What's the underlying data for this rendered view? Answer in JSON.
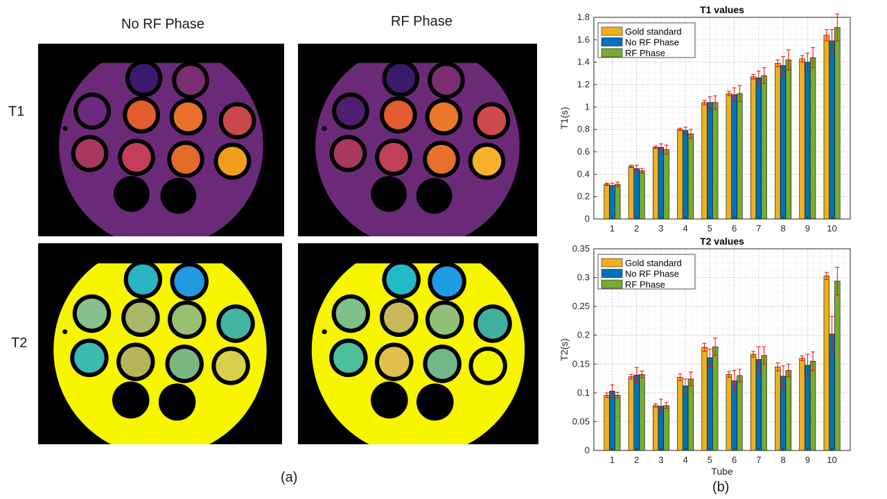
{
  "figure": {
    "col_labels": [
      "No RF Phase",
      "RF Phase"
    ],
    "row_labels": [
      "T1",
      "T2"
    ],
    "label_a": "(a)",
    "label_b": "(b)"
  },
  "colors": {
    "gold": "#EDB120",
    "blue": "#0072BD",
    "green": "#77AC30",
    "error": "#FF0000",
    "t1_background": "#6B2A78",
    "t2_background": "#F7F500"
  },
  "chart_data": [
    {
      "type": "bar",
      "title": "T1 values",
      "xlabel": "",
      "ylabel": "T1(s)",
      "categories": [
        "1",
        "2",
        "3",
        "4",
        "5",
        "6",
        "7",
        "8",
        "9",
        "10"
      ],
      "ylim": [
        0,
        1.8
      ],
      "yticks": [
        0,
        0.2,
        0.4,
        0.6,
        0.8,
        1,
        1.2,
        1.4,
        1.6,
        1.8
      ],
      "ytick_labels": [
        "0",
        "0.2",
        "0.4",
        "0.6",
        "0.8",
        "1",
        "1.2",
        "1.4",
        "1.6",
        "1.8"
      ],
      "grid": true,
      "legend_position": "top-left",
      "series": [
        {
          "name": "Gold standard",
          "color_key": "gold",
          "values": [
            0.31,
            0.47,
            0.64,
            0.8,
            1.04,
            1.12,
            1.27,
            1.39,
            1.43,
            1.64
          ],
          "errors": [
            0.01,
            0.01,
            0.01,
            0.01,
            0.02,
            0.02,
            0.02,
            0.03,
            0.03,
            0.05
          ]
        },
        {
          "name": "No RF Phase",
          "color_key": "blue",
          "values": [
            0.3,
            0.45,
            0.64,
            0.79,
            1.04,
            1.11,
            1.26,
            1.37,
            1.4,
            1.59
          ],
          "errors": [
            0.02,
            0.03,
            0.03,
            0.03,
            0.05,
            0.06,
            0.06,
            0.08,
            0.08,
            0.1
          ]
        },
        {
          "name": "RF Phase",
          "color_key": "green",
          "values": [
            0.31,
            0.43,
            0.62,
            0.76,
            1.04,
            1.12,
            1.28,
            1.42,
            1.44,
            1.71
          ],
          "errors": [
            0.02,
            0.02,
            0.04,
            0.04,
            0.06,
            0.07,
            0.07,
            0.09,
            0.09,
            0.12
          ]
        }
      ]
    },
    {
      "type": "bar",
      "title": "T2 values",
      "xlabel": "Tube",
      "ylabel": "T2(s)",
      "categories": [
        "1",
        "2",
        "3",
        "4",
        "5",
        "6",
        "7",
        "8",
        "9",
        "10"
      ],
      "ylim": [
        0,
        0.35
      ],
      "yticks": [
        0,
        0.05,
        0.1,
        0.15,
        0.2,
        0.25,
        0.3,
        0.35
      ],
      "ytick_labels": [
        "0",
        "0.05",
        "0.1",
        "0.15",
        "0.2",
        "0.25",
        "0.3",
        "0.35"
      ],
      "grid": true,
      "legend_position": "top-left",
      "series": [
        {
          "name": "Gold standard",
          "color_key": "gold",
          "values": [
            0.096,
            0.128,
            0.078,
            0.127,
            0.179,
            0.132,
            0.167,
            0.145,
            0.16,
            0.303
          ],
          "errors": [
            0.004,
            0.004,
            0.003,
            0.006,
            0.007,
            0.005,
            0.005,
            0.007,
            0.004,
            0.006
          ]
        },
        {
          "name": "No RF Phase",
          "color_key": "blue",
          "values": [
            0.103,
            0.131,
            0.077,
            0.112,
            0.161,
            0.121,
            0.158,
            0.129,
            0.148,
            0.202
          ],
          "errors": [
            0.011,
            0.013,
            0.012,
            0.012,
            0.015,
            0.018,
            0.022,
            0.018,
            0.019,
            0.031
          ]
        },
        {
          "name": "RF Phase",
          "color_key": "green",
          "values": [
            0.096,
            0.132,
            0.078,
            0.124,
            0.18,
            0.13,
            0.165,
            0.139,
            0.155,
            0.294
          ],
          "errors": [
            0.005,
            0.006,
            0.005,
            0.012,
            0.015,
            0.011,
            0.015,
            0.011,
            0.016,
            0.024
          ]
        }
      ]
    }
  ],
  "phantom_maps": {
    "T1": {
      "no_rf_phase": {
        "tubes": [
          "#381A6E",
          "#7A2E72",
          "#6B2A7E",
          "#E25C30",
          "#E8702A",
          "#C9484C",
          "#A8385E",
          "#C43E5A",
          "#E46A2A",
          "#F49E1E"
        ],
        "empty_tubes": 2
      },
      "rf_phase": {
        "tubes": [
          "#3A1A6B",
          "#7C2E72",
          "#4E1F70",
          "#E25C30",
          "#EA782A",
          "#CE4A4A",
          "#A8385E",
          "#C23F5A",
          "#E8702A",
          "#F7B12A"
        ],
        "empty_tubes": 2
      }
    },
    "T2": {
      "no_rf_phase": {
        "tubes": [
          "#2AB3C2",
          "#229AE0",
          "#88C08C",
          "#A8B868",
          "#98BE70",
          "#42B6A0",
          "#3ABAB0",
          "#B4B45A",
          "#7EB682",
          "#D8D04A"
        ],
        "empty_tubes": 2
      },
      "rf_phase": {
        "tubes": [
          "#22BAC6",
          "#1F9BE2",
          "#7EC088",
          "#C8B85A",
          "#90BF76",
          "#3FB0A0",
          "#4CBE9C",
          "#E0C04E",
          "#70B888",
          "#F5F500"
        ],
        "empty_tubes": 2
      }
    }
  }
}
